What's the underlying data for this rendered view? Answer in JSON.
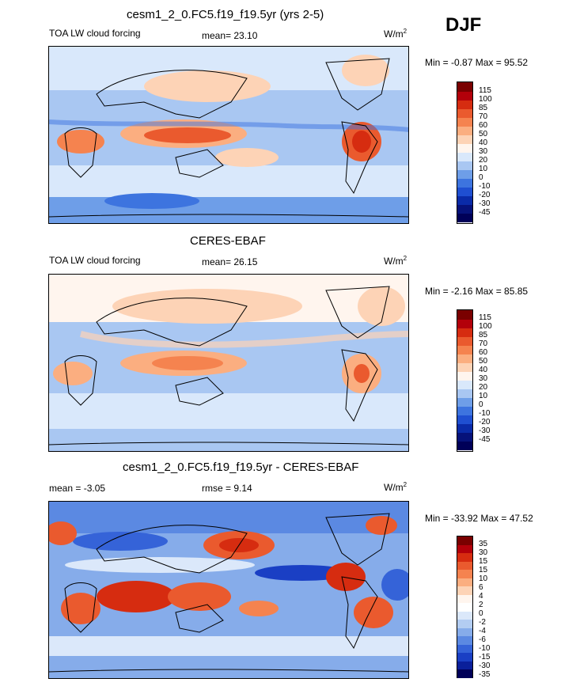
{
  "season": "DJF",
  "panels": [
    {
      "title": "cesm1_2_0.FC5.f19_f19.5yr (yrs 2-5)",
      "left_label": "TOA LW cloud forcing",
      "mid_label": "mean=  23.10",
      "units": "W/m",
      "units_sup": "2",
      "minmax": "Min =  -0.87 Max =  95.52",
      "levels": [
        "115",
        "100",
        "85",
        "70",
        "60",
        "50",
        "40",
        "30",
        "20",
        "10",
        "0",
        "-10",
        "-20",
        "-30",
        "-45"
      ]
    },
    {
      "title": "CERES-EBAF",
      "left_label": "TOA LW cloud forcing",
      "mid_label": "mean=  26.15",
      "units": "W/m",
      "units_sup": "2",
      "minmax": "Min =  -2.16 Max =  85.85",
      "levels": [
        "115",
        "100",
        "85",
        "70",
        "60",
        "50",
        "40",
        "30",
        "20",
        "10",
        "0",
        "-10",
        "-20",
        "-30",
        "-45"
      ]
    },
    {
      "title": "cesm1_2_0.FC5.f19_f19.5yr - CERES-EBAF",
      "left_label": "mean =  -3.05",
      "mid_label": "rmse =   9.14",
      "units": "W/m",
      "units_sup": "2",
      "minmax": "Min = -33.92 Max =  47.52",
      "levels": [
        "35",
        "30",
        "15",
        "15",
        "10",
        "6",
        "4",
        "2",
        "0",
        "-2",
        "-4",
        "-6",
        "-10",
        "-15",
        "-30",
        "-35"
      ]
    }
  ],
  "colors": {
    "abs_scale": [
      "#7a0000",
      "#b3000a",
      "#d62c10",
      "#ea5a2e",
      "#f5834f",
      "#fbae80",
      "#fdd3b6",
      "#fff5ee",
      "#d9e8fb",
      "#a9c7f2",
      "#6e9ee8",
      "#3d74df",
      "#1f4fd1",
      "#0a2ba8",
      "#06127a",
      "#000058"
    ],
    "diff_scale": [
      "#7a0000",
      "#b3000a",
      "#d62c10",
      "#ea5a2e",
      "#f5834f",
      "#fbae80",
      "#fdd3b6",
      "#fff5ee",
      "#ffffff",
      "#dbe8fa",
      "#b3cdf2",
      "#86acea",
      "#5b89e2",
      "#3563d8",
      "#1a3fc4",
      "#0a1f9a",
      "#000058"
    ]
  }
}
